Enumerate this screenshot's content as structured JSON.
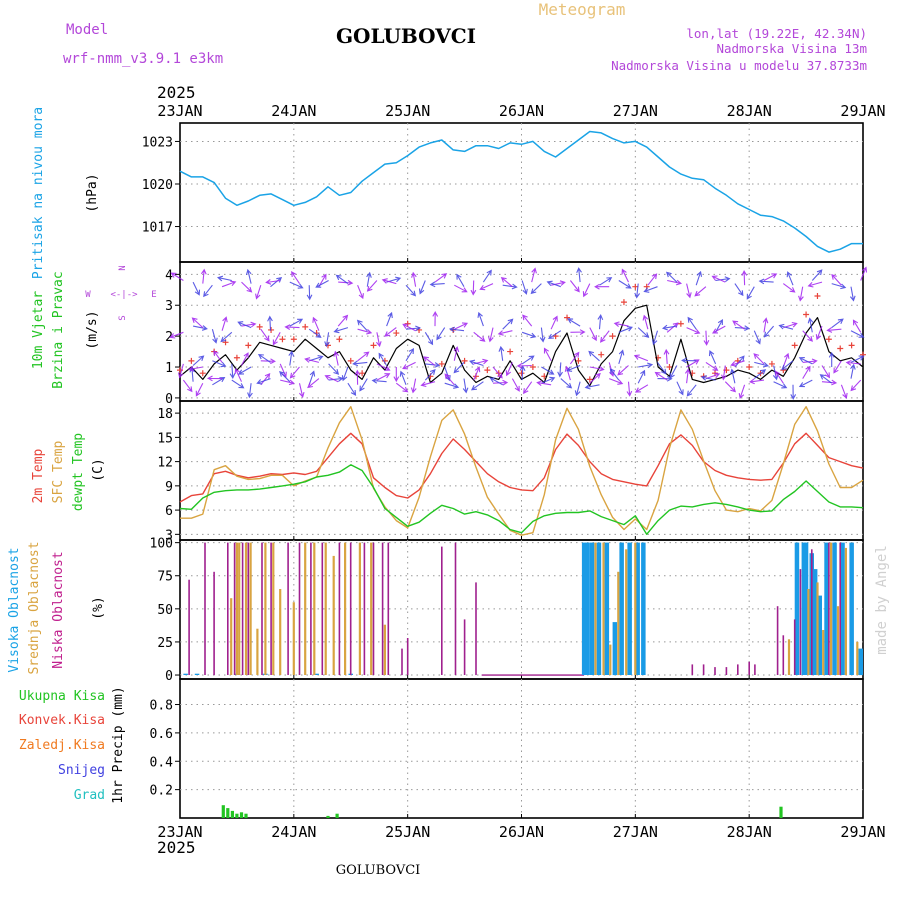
{
  "header": {
    "model_label": "Model",
    "model_name": "wrf-nmm_v3.9.1  e3km",
    "station": "GOLUBOVCI",
    "title": "Meteogram",
    "lonlat": "lon,lat (19.22E, 42.34N)",
    "altitude": "Nadmorska Visina 13m",
    "model_altitude": "Nadmorska Visina u modelu 37.8733m",
    "year_top": "2025",
    "year_bottom": "2025",
    "footer_station": "GOLUBOVCI",
    "watermark": "made by Angel"
  },
  "colors": {
    "pressure": "#1aa3e6",
    "wind_speed": "#000000",
    "wind_gust": "#e8443a",
    "temp2m": "#e8443a",
    "sfc_temp": "#d9a441",
    "dewpt": "#22c422",
    "cloud_high": "#1a9be6",
    "cloud_mid": "#d9a441",
    "cloud_low": "#a0208e",
    "precip_total": "#22c422",
    "precip_conv": "#e8443a",
    "precip_frozen": "#f07a20",
    "snow": "#4040e0",
    "graupel": "#20c0c0"
  },
  "chart_data": [
    {
      "type": "line",
      "id": "pressure",
      "ylabel_name": "Pritisak na nivou mora",
      "ylabel_unit": "(hPa)",
      "ylim": [
        1014.5,
        1024.3
      ],
      "yticks": [
        1017,
        1020,
        1023
      ],
      "x_days": [
        0,
        0.1,
        0.2,
        0.3,
        0.4,
        0.5,
        0.6,
        0.7,
        0.8,
        0.9,
        1.0,
        1.1,
        1.2,
        1.3,
        1.4,
        1.5,
        1.6,
        1.7,
        1.8,
        1.9,
        2.0,
        2.1,
        2.2,
        2.3,
        2.4,
        2.5,
        2.6,
        2.7,
        2.8,
        2.9,
        3.0,
        3.1,
        3.2,
        3.3,
        3.4,
        3.5,
        3.6,
        3.7,
        3.8,
        3.9,
        4.0,
        4.1,
        4.2,
        4.3,
        4.4,
        4.5,
        4.6,
        4.7,
        4.8,
        4.9,
        5.0,
        5.1,
        5.2,
        5.3,
        5.4,
        5.5,
        5.6,
        5.7,
        5.8,
        5.9,
        6.0
      ],
      "values": [
        1020.9,
        1020.5,
        1020.5,
        1020.1,
        1019.0,
        1018.5,
        1018.8,
        1019.2,
        1019.3,
        1018.9,
        1018.5,
        1018.7,
        1019.1,
        1019.8,
        1019.2,
        1019.4,
        1020.2,
        1020.8,
        1021.4,
        1021.5,
        1022.0,
        1022.6,
        1022.9,
        1023.1,
        1022.4,
        1022.3,
        1022.7,
        1022.7,
        1022.5,
        1022.9,
        1022.8,
        1023.0,
        1022.3,
        1021.9,
        1022.5,
        1023.1,
        1023.7,
        1023.6,
        1023.2,
        1022.9,
        1023.0,
        1022.6,
        1021.9,
        1021.2,
        1020.7,
        1020.4,
        1020.3,
        1019.7,
        1019.2,
        1018.6,
        1018.2,
        1017.8,
        1017.7,
        1017.4,
        1016.9,
        1016.3,
        1015.6,
        1015.2,
        1015.4,
        1015.8,
        1015.8
      ]
    },
    {
      "type": "line",
      "id": "wind",
      "ylabel_name": "10m Vjetar",
      "ylabel_sub": "Brzina i Pravac",
      "ylabel_unit": "(m/s)",
      "compass_n": "N",
      "compass_s": "S",
      "compass_w": "W",
      "compass_e": "E",
      "ylim": [
        -0.1,
        4.4
      ],
      "yticks": [
        0,
        1,
        2,
        3,
        4
      ],
      "x_days": [
        0,
        0.1,
        0.2,
        0.3,
        0.4,
        0.5,
        0.6,
        0.7,
        0.8,
        0.9,
        1.0,
        1.1,
        1.2,
        1.3,
        1.4,
        1.5,
        1.6,
        1.7,
        1.8,
        1.9,
        2.0,
        2.1,
        2.2,
        2.3,
        2.4,
        2.5,
        2.6,
        2.7,
        2.8,
        2.9,
        3.0,
        3.1,
        3.2,
        3.3,
        3.4,
        3.5,
        3.6,
        3.7,
        3.8,
        3.9,
        4.0,
        4.1,
        4.2,
        4.3,
        4.4,
        4.5,
        4.6,
        4.7,
        4.8,
        4.9,
        5.0,
        5.1,
        5.2,
        5.3,
        5.4,
        5.5,
        5.6,
        5.7,
        5.8,
        5.9,
        6.0
      ],
      "series": [
        {
          "name": "speed",
          "values": [
            0.7,
            1.0,
            0.6,
            1.1,
            1.4,
            0.9,
            1.3,
            1.8,
            1.7,
            1.6,
            1.5,
            1.9,
            1.6,
            1.3,
            1.5,
            0.9,
            0.6,
            1.3,
            0.9,
            1.6,
            1.9,
            1.7,
            0.5,
            0.8,
            1.7,
            0.9,
            0.5,
            0.7,
            0.6,
            1.2,
            0.6,
            0.8,
            0.5,
            1.5,
            2.1,
            0.9,
            0.4,
            1.1,
            1.5,
            2.5,
            2.9,
            3.0,
            1.0,
            0.7,
            1.9,
            0.6,
            0.5,
            0.6,
            0.7,
            0.9,
            0.8,
            0.6,
            0.9,
            0.7,
            1.3,
            2.1,
            2.6,
            1.5,
            1.2,
            1.3,
            1.0
          ]
        },
        {
          "name": "gust",
          "values": [
            0.9,
            1.2,
            0.8,
            1.5,
            1.8,
            1.3,
            1.7,
            2.3,
            2.2,
            1.9,
            1.9,
            2.3,
            2.1,
            1.7,
            1.9,
            1.2,
            0.8,
            1.7,
            1.2,
            2.1,
            2.4,
            2.2,
            0.7,
            1.1,
            2.2,
            1.2,
            0.7,
            0.9,
            0.8,
            1.5,
            0.8,
            1.0,
            0.7,
            2.0,
            2.6,
            1.2,
            0.6,
            1.4,
            2.0,
            3.1,
            3.6,
            3.6,
            1.3,
            1.0,
            2.4,
            0.8,
            0.7,
            0.8,
            0.9,
            1.2,
            1.0,
            0.8,
            1.1,
            0.9,
            1.7,
            2.7,
            3.3,
            1.9,
            1.6,
            1.7,
            1.4
          ]
        }
      ]
    },
    {
      "type": "line",
      "id": "temperature",
      "ylabel_temp": "2m Temp",
      "ylabel_sfc": "SFC Temp",
      "ylabel_dew": "dewpt Temp",
      "ylabel_unit": "(C)",
      "ylim": [
        2.3,
        19.5
      ],
      "yticks": [
        3,
        6,
        9,
        12,
        15,
        18
      ],
      "x_days": [
        0,
        0.1,
        0.2,
        0.3,
        0.4,
        0.5,
        0.6,
        0.7,
        0.8,
        0.9,
        1.0,
        1.1,
        1.2,
        1.3,
        1.4,
        1.5,
        1.6,
        1.7,
        1.8,
        1.9,
        2.0,
        2.1,
        2.2,
        2.3,
        2.4,
        2.5,
        2.6,
        2.7,
        2.8,
        2.9,
        3.0,
        3.1,
        3.2,
        3.3,
        3.4,
        3.5,
        3.6,
        3.7,
        3.8,
        3.9,
        4.0,
        4.1,
        4.2,
        4.3,
        4.4,
        4.5,
        4.6,
        4.7,
        4.8,
        4.9,
        5.0,
        5.1,
        5.2,
        5.3,
        5.4,
        5.5,
        5.6,
        5.7,
        5.8,
        5.9,
        6.0
      ],
      "series": [
        {
          "name": "2m Temp",
          "values": [
            7.0,
            7.8,
            8.0,
            10.5,
            10.8,
            10.3,
            10.0,
            10.2,
            10.5,
            10.4,
            10.6,
            10.4,
            10.8,
            12.5,
            14.2,
            15.5,
            14.2,
            10.0,
            8.8,
            7.8,
            7.5,
            8.5,
            10.5,
            13.0,
            14.8,
            13.5,
            12.0,
            10.5,
            9.5,
            8.8,
            8.5,
            8.4,
            10.0,
            13.5,
            15.4,
            14.0,
            12.0,
            10.5,
            9.8,
            9.5,
            9.2,
            9.0,
            11.5,
            14.2,
            15.3,
            14.0,
            12.0,
            10.9,
            10.3,
            10.0,
            9.8,
            9.7,
            9.8,
            11.8,
            14.2,
            15.5,
            14.0,
            12.5,
            12.0,
            11.5,
            11.2
          ]
        },
        {
          "name": "SFC Temp",
          "values": [
            5.0,
            5.0,
            5.5,
            11.0,
            11.5,
            10.2,
            9.8,
            9.9,
            10.3,
            10.3,
            9.0,
            9.6,
            10.1,
            13.7,
            16.8,
            18.8,
            14.7,
            8.7,
            6.4,
            4.7,
            3.8,
            7.6,
            12.6,
            17.1,
            18.4,
            15.4,
            11.3,
            7.6,
            5.5,
            3.5,
            2.9,
            3.2,
            7.9,
            14.7,
            18.6,
            16.0,
            11.4,
            7.9,
            5.1,
            3.6,
            4.9,
            3.6,
            7.2,
            13.7,
            18.4,
            16.0,
            12.1,
            8.4,
            6.0,
            5.8,
            6.2,
            5.9,
            7.2,
            11.7,
            16.6,
            18.8,
            15.8,
            11.7,
            8.8,
            8.8,
            9.7
          ]
        },
        {
          "name": "dewpt Temp",
          "values": [
            6.2,
            6.1,
            7.5,
            8.2,
            8.4,
            8.5,
            8.5,
            8.6,
            8.8,
            9.0,
            9.2,
            9.5,
            10.1,
            10.3,
            10.7,
            11.6,
            10.9,
            8.8,
            6.2,
            5.1,
            4.0,
            4.5,
            5.6,
            6.6,
            6.2,
            5.5,
            5.8,
            5.4,
            4.7,
            3.6,
            3.2,
            4.6,
            5.3,
            5.6,
            5.7,
            5.7,
            5.9,
            5.2,
            4.7,
            4.2,
            5.3,
            3.0,
            4.7,
            6.0,
            6.5,
            6.4,
            6.7,
            6.9,
            6.7,
            6.4,
            6.0,
            5.8,
            5.9,
            7.3,
            8.3,
            9.6,
            8.3,
            7.0,
            6.4,
            6.4,
            6.3
          ]
        }
      ]
    },
    {
      "type": "bar",
      "id": "clouds",
      "ylabel_high": "Visoka Oblacnost",
      "ylabel_mid": "Srednja Oblacnost",
      "ylabel_low": "Niska Oblacnost",
      "ylabel_unit": "(%)",
      "ylim": [
        -3,
        102
      ],
      "yticks": [
        0,
        25,
        50,
        75,
        100
      ],
      "series": [
        {
          "name": "Niska",
          "x_days": [
            0.08,
            0.22,
            0.3,
            0.42,
            0.48,
            0.55,
            0.6,
            0.72,
            0.8,
            0.95,
            1.05,
            1.15,
            1.25,
            1.4,
            1.5,
            1.62,
            1.7,
            1.78,
            1.83,
            1.95,
            2.0,
            2.3,
            2.42,
            2.5,
            2.6,
            4.5,
            4.6,
            4.7,
            4.8,
            4.9,
            5.0,
            5.05,
            5.25,
            5.3,
            5.4,
            5.45,
            5.55,
            5.7,
            5.8
          ],
          "values": [
            72,
            100,
            78,
            100,
            100,
            100,
            100,
            100,
            100,
            100,
            100,
            100,
            100,
            100,
            100,
            100,
            100,
            100,
            100,
            20,
            28,
            97,
            100,
            42,
            70,
            8,
            8,
            6,
            6,
            8,
            10,
            8,
            52,
            30,
            42,
            80,
            95,
            100,
            100
          ]
        },
        {
          "name": "Srednja",
          "x_days": [
            0.45,
            0.5,
            0.52,
            0.58,
            0.62,
            0.68,
            0.75,
            0.82,
            0.88,
            1.0,
            1.1,
            1.18,
            1.28,
            1.35,
            1.45,
            1.58,
            1.68,
            1.8,
            3.65,
            3.72,
            3.78,
            3.85,
            3.92,
            4.0,
            5.35,
            5.52,
            5.6,
            5.65,
            5.72,
            5.78,
            5.85,
            5.95
          ],
          "values": [
            58,
            100,
            100,
            100,
            100,
            35,
            100,
            100,
            65,
            55,
            100,
            100,
            100,
            90,
            100,
            100,
            100,
            38,
            100,
            100,
            23,
            78,
            95,
            100,
            27,
            65,
            70,
            34,
            100,
            52,
            96,
            25
          ]
        },
        {
          "name": "Visoka",
          "x_days": [
            0.05,
            0.15,
            0.5,
            0.75,
            1.2,
            1.5,
            3.55,
            3.58,
            3.62,
            3.68,
            3.75,
            3.82,
            3.88,
            3.95,
            4.02,
            4.07,
            5.42,
            5.48,
            5.5,
            5.55,
            5.58,
            5.62,
            5.68,
            5.75,
            5.82,
            5.9,
            5.98
          ],
          "values": [
            1,
            1,
            1,
            1,
            1,
            1,
            100,
            100,
            100,
            100,
            100,
            40,
            100,
            100,
            100,
            100,
            100,
            100,
            100,
            92,
            80,
            60,
            100,
            100,
            100,
            100,
            20
          ]
        }
      ]
    },
    {
      "type": "bar",
      "id": "precip",
      "ylabel_unit": "1hr Precip (mm)",
      "legend": [
        "Ukupna Kisa",
        "Konvek.Kisa",
        "Zaledj.Kisa",
        "Snijeg",
        "Grad"
      ],
      "ylim": [
        0,
        0.98
      ],
      "yticks": [
        0.2,
        0.4,
        0.6,
        0.8
      ],
      "ytick_labels": [
        "0.2",
        "0.4",
        "0.6",
        "0.8"
      ],
      "series": [
        {
          "name": "Ukupna Kisa",
          "x_days": [
            0.38,
            0.42,
            0.46,
            0.5,
            0.54,
            0.58,
            1.3,
            1.38,
            5.28
          ],
          "values": [
            0.09,
            0.07,
            0.05,
            0.03,
            0.04,
            0.03,
            0.015,
            0.03,
            0.08
          ]
        }
      ]
    }
  ],
  "x_axis": {
    "days": 6,
    "tick_labels": [
      "23JAN",
      "24JAN",
      "25JAN",
      "26JAN",
      "27JAN",
      "28JAN",
      "29JAN"
    ]
  }
}
